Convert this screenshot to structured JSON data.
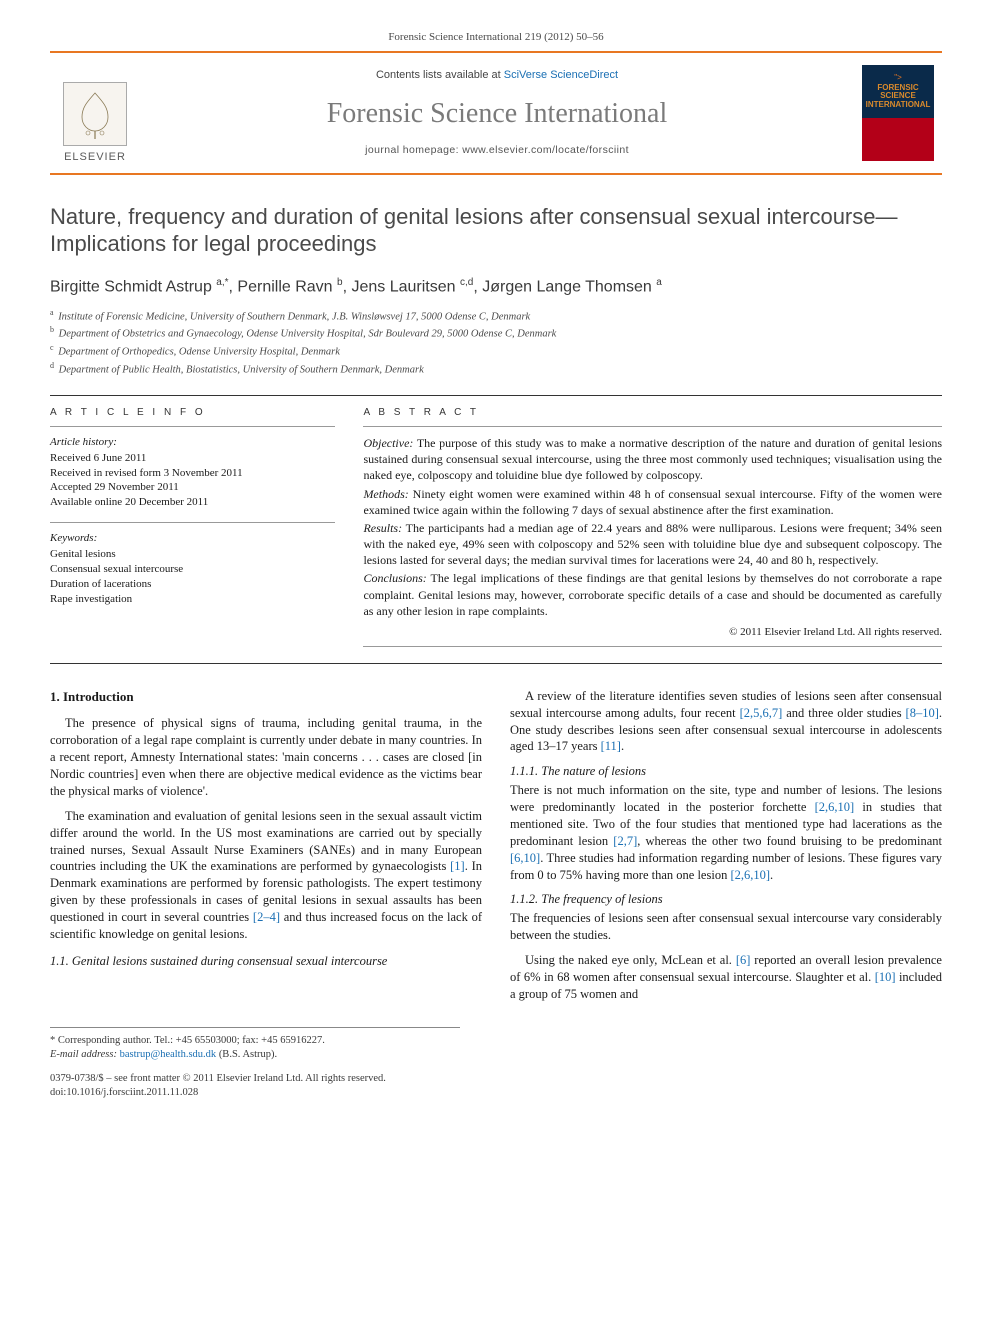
{
  "colors": {
    "accent_orange": "#e87722",
    "link_blue": "#1a6fb3",
    "title_gray": "#7a7a7a",
    "text": "#1a1a1a",
    "muted": "#4a4a4a",
    "rule": "#333333",
    "thin_rule": "#999999",
    "cover_top": "#0a2a4a",
    "cover_bottom": "#b30018"
  },
  "header": {
    "reference_line": "Forensic Science International 219 (2012) 50–56",
    "contents_prefix": "Contents lists available at ",
    "contents_link": "SciVerse ScienceDirect",
    "journal_title": "Forensic Science International",
    "homepage_prefix": "journal homepage: ",
    "homepage_url": "www.elsevier.com/locate/forsciint",
    "publisher_wordmark": "ELSEVIER",
    "cover_label_1": "FORENSIC",
    "cover_label_2": "SCIENCE",
    "cover_label_3": "INTERNATIONAL"
  },
  "article": {
    "title": "Nature, frequency and duration of genital lesions after consensual sexual intercourse—Implications for legal proceedings",
    "authors_html": "Birgitte Schmidt Astrup <sup>a,*</sup>, Pernille Ravn <sup>b</sup>, Jens Lauritsen <sup>c,d</sup>, Jørgen Lange Thomsen <sup>a</sup>",
    "affiliations": [
      {
        "key": "a",
        "text": "Institute of Forensic Medicine, University of Southern Denmark, J.B. Winsløwsvej 17, 5000 Odense C, Denmark"
      },
      {
        "key": "b",
        "text": "Department of Obstetrics and Gynaecology, Odense University Hospital, Sdr Boulevard 29, 5000 Odense C, Denmark"
      },
      {
        "key": "c",
        "text": "Department of Orthopedics, Odense University Hospital, Denmark"
      },
      {
        "key": "d",
        "text": "Department of Public Health, Biostatistics, University of Southern Denmark, Denmark"
      }
    ]
  },
  "info": {
    "heading": "A R T I C L E   I N F O",
    "history_heading": "Article history:",
    "history": [
      "Received 6 June 2011",
      "Received in revised form 3 November 2011",
      "Accepted 29 November 2011",
      "Available online 20 December 2011"
    ],
    "keywords_heading": "Keywords:",
    "keywords": [
      "Genital lesions",
      "Consensual sexual intercourse",
      "Duration of lacerations",
      "Rape investigation"
    ]
  },
  "abstract": {
    "heading": "A B S T R A C T",
    "objective_label": "Objective:",
    "objective": " The purpose of this study was to make a normative description of the nature and duration of genital lesions sustained during consensual sexual intercourse, using the three most commonly used techniques; visualisation using the naked eye, colposcopy and toluidine blue dye followed by colposcopy.",
    "methods_label": "Methods:",
    "methods": " Ninety eight women were examined within 48 h of consensual sexual intercourse. Fifty of the women were examined twice again within the following 7 days of sexual abstinence after the first examination.",
    "results_label": "Results:",
    "results": " The participants had a median age of 22.4 years and 88% were nulliparous. Lesions were frequent; 34% seen with the naked eye, 49% seen with colposcopy and 52% seen with toluidine blue dye and subsequent colposcopy. The lesions lasted for several days; the median survival times for lacerations were 24, 40 and 80 h, respectively.",
    "conclusions_label": "Conclusions:",
    "conclusions": " The legal implications of these findings are that genital lesions by themselves do not corroborate a rape complaint. Genital lesions may, however, corroborate specific details of a case and should be documented as carefully as any other lesion in rape complaints.",
    "copyright": "© 2011 Elsevier Ireland Ltd. All rights reserved."
  },
  "body": {
    "s1_heading": "1. Introduction",
    "s1_p1": "The presence of physical signs of trauma, including genital trauma, in the corroboration of a legal rape complaint is currently under debate in many countries. In a recent report, Amnesty International states: 'main concerns . . . cases are closed [in Nordic countries] even when there are objective medical evidence as the victims bear the physical marks of violence'.",
    "s1_p2_pre": "The examination and evaluation of genital lesions seen in the sexual assault victim differ around the world. In the US most examinations are carried out by specially trained nurses, Sexual Assault Nurse Examiners (SANEs) and in many European countries including the UK the examinations are performed by gynaecologists ",
    "s1_p2_c1": "[1]",
    "s1_p2_mid": ". In Denmark examinations are performed by forensic pathologists. The expert testimony given by these professionals in cases of genital lesions in sexual assaults has been questioned in court in several countries ",
    "s1_p2_c2": "[2–4]",
    "s1_p2_post": " and thus increased focus on the lack of scientific knowledge on genital lesions.",
    "s11_heading": "1.1. Genital lesions sustained during consensual sexual intercourse",
    "s11_p1_pre": "A review of the literature identifies seven studies of lesions seen after consensual sexual intercourse among adults, four recent ",
    "s11_p1_c1": "[2,5,6,7]",
    "s11_p1_mid": " and three older studies ",
    "s11_p1_c2": "[8–10]",
    "s11_p1_mid2": ". One study describes lesions seen after consensual sexual intercourse in adolescents aged 13–17 years ",
    "s11_p1_c3": "[11]",
    "s11_p1_post": ".",
    "s111_heading": "1.1.1. The nature of lesions",
    "s111_p1_pre": "There is not much information on the site, type and number of lesions. The lesions were predominantly located in the posterior forchette ",
    "s111_p1_c1": "[2,6,10]",
    "s111_p1_mid": " in studies that mentioned site. Two of the four studies that mentioned type had lacerations as the predominant lesion ",
    "s111_p1_c2": "[2,7]",
    "s111_p1_mid2": ", whereas the other two found bruising to be predominant ",
    "s111_p1_c3": "[6,10]",
    "s111_p1_mid3": ". Three studies had information regarding number of lesions. These figures vary from 0 to 75% having more than one lesion ",
    "s111_p1_c4": "[2,6,10]",
    "s111_p1_post": ".",
    "s112_heading": "1.1.2. The frequency of lesions",
    "s112_p1": "The frequencies of lesions seen after consensual sexual intercourse vary considerably between the studies.",
    "s112_p2_pre": "Using the naked eye only, McLean et al. ",
    "s112_p2_c1": "[6]",
    "s112_p2_mid": " reported an overall lesion prevalence of 6% in 68 women after consensual sexual intercourse. Slaughter et al. ",
    "s112_p2_c2": "[10]",
    "s112_p2_post": " included a group of 75 women and"
  },
  "footnote": {
    "corr_label": "* Corresponding author. Tel.: +45 65503000; fax: +45 65916227.",
    "email_label": "E-mail address: ",
    "email": "bastrup@health.sdu.dk",
    "email_suffix": " (B.S. Astrup)."
  },
  "bottom": {
    "line1": "0379-0738/$ – see front matter © 2011 Elsevier Ireland Ltd. All rights reserved.",
    "line2": "doi:10.1016/j.forsciint.2011.11.028"
  }
}
